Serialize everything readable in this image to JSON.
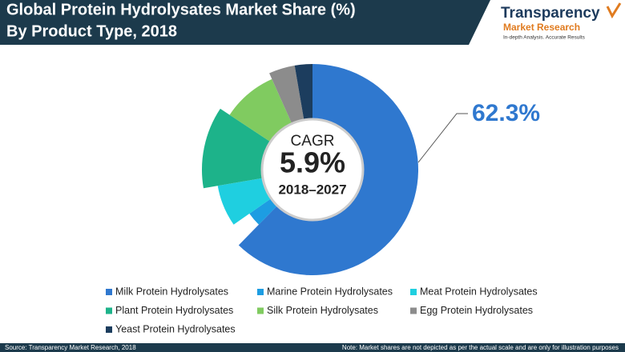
{
  "header": {
    "title_line1": "Global Protein Hydrolysates Market Share (%)",
    "title_line2": "By Product Type, 2018",
    "logo": {
      "name": "Transparency",
      "subname": "Market Research",
      "tagline": "In-depth Analysis. Accurate Results"
    }
  },
  "chart_data": {
    "type": "donut",
    "categories": [
      "Milk Protein Hydrolysates",
      "Marine Protein Hydrolysates",
      "Meat Protein Hydrolysates",
      "Plant Protein Hydrolysates",
      "Silk Protein Hydrolysates",
      "Egg Protein Hydrolysates",
      "Yeast Protein Hydrolysates"
    ],
    "values": [
      62.3,
      3,
      7,
      12,
      9,
      4,
      2.7
    ],
    "value_labels": [
      "62.3%",
      null,
      null,
      null,
      null,
      null,
      null
    ],
    "colors": [
      "#2f78cf",
      "#1d9de2",
      "#1fcfe0",
      "#1db38a",
      "#80cb60",
      "#8c8c8c",
      "#1c3d5e"
    ],
    "annotations": {
      "center_title": "CAGR",
      "center_value": "5.9%",
      "center_period": "2018–2027"
    }
  },
  "footer": {
    "source": "Source: Transparency Market Research, 2018",
    "note": "Note: Market shares are not depicted as per the actual scale and are only for illustration purposes"
  }
}
